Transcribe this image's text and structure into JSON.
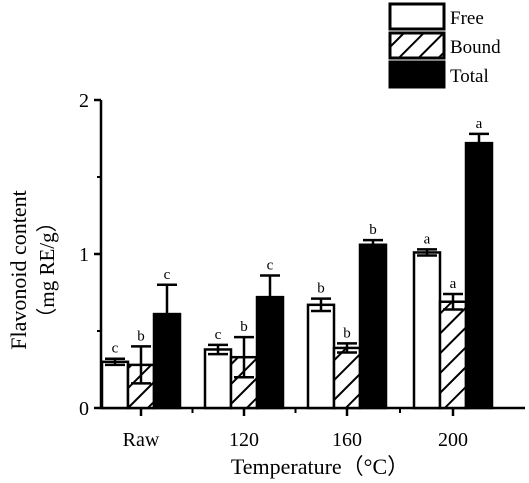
{
  "chart_data": {
    "type": "bar",
    "xlabel": "Temperature（°C）",
    "ylabel_line1": "Flavonoid content",
    "ylabel_line2": "（mg RE/g）",
    "categories": [
      "Raw",
      "120",
      "160",
      "200"
    ],
    "ylim": [
      0,
      2
    ],
    "yticks": [
      "0",
      "1",
      "2"
    ],
    "legend_position": "top-right",
    "series": [
      {
        "name": "Free",
        "pattern": "white",
        "values": [
          0.3,
          0.38,
          0.67,
          1.01
        ],
        "errors": [
          0.02,
          0.03,
          0.04,
          0.02
        ],
        "letters": [
          "c",
          "c",
          "b",
          "a"
        ]
      },
      {
        "name": "Bound",
        "pattern": "hatched",
        "values": [
          0.28,
          0.33,
          0.39,
          0.69
        ],
        "errors": [
          0.12,
          0.13,
          0.03,
          0.05
        ],
        "letters": [
          "b",
          "b",
          "b",
          "a"
        ]
      },
      {
        "name": "Total",
        "pattern": "black",
        "values": [
          0.61,
          0.72,
          1.06,
          1.72
        ],
        "errors": [
          0.19,
          0.14,
          0.03,
          0.06
        ],
        "letters": [
          "c",
          "c",
          "b",
          "a"
        ]
      }
    ],
    "colors": {
      "fill_dark": "#000000",
      "fill_light": "#ffffff",
      "stroke": "#000000"
    }
  }
}
